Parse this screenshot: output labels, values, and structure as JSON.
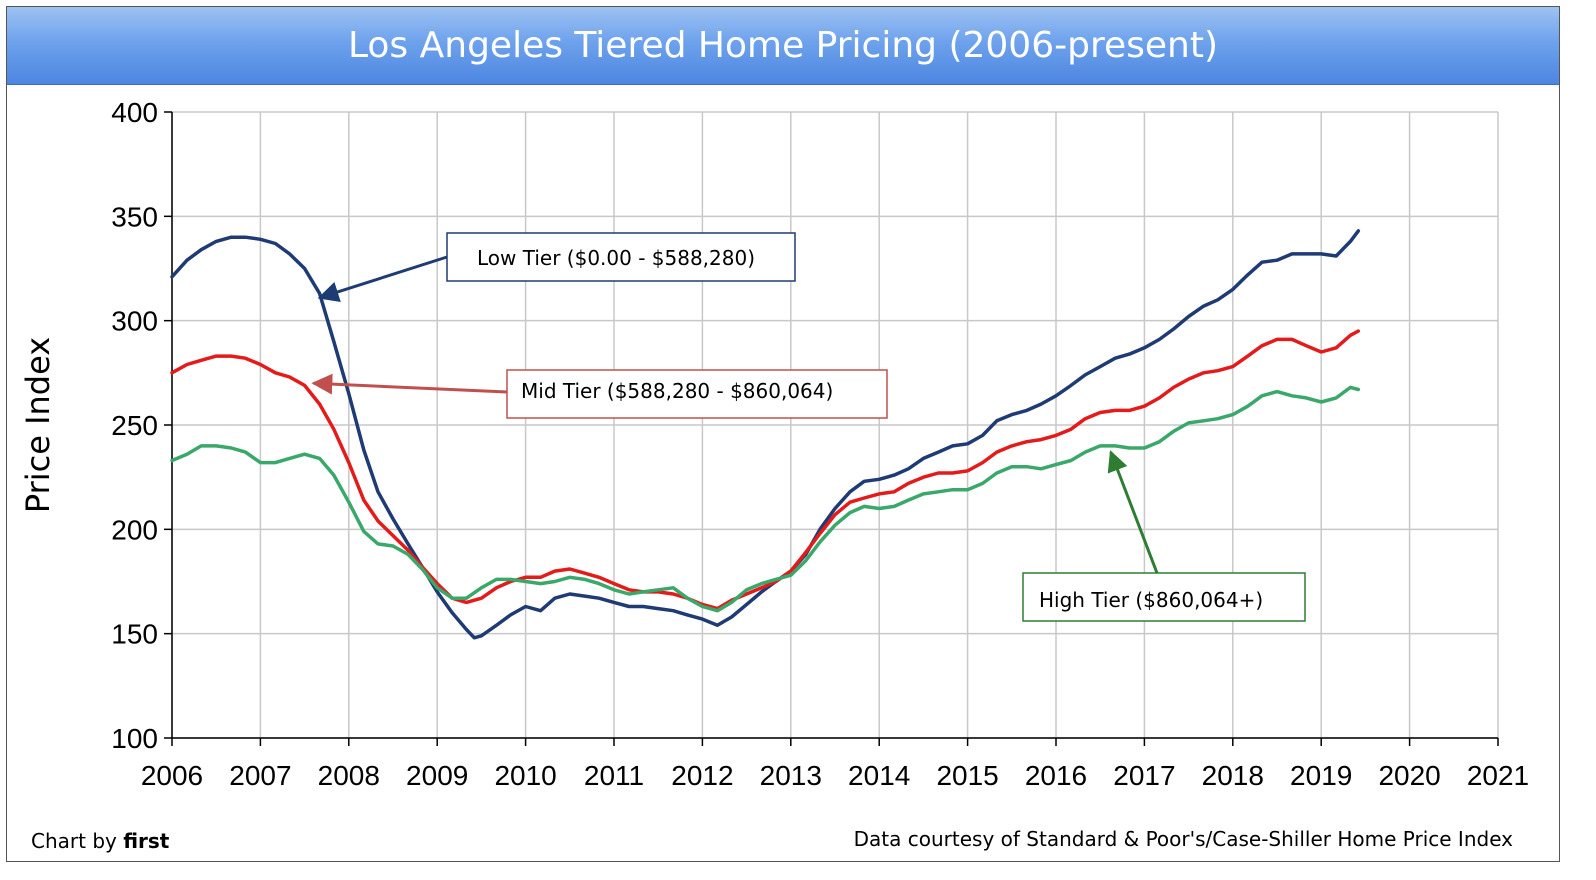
{
  "title": "Los Angeles Tiered Home Pricing (2006-present)",
  "credits": {
    "chart_by_prefix": "Chart by",
    "chart_by_name": "first",
    "source": "Data courtesy of Standard & Poor's/Case-Shiller Home Price Index"
  },
  "chart_data": {
    "type": "line",
    "title": "Los Angeles Tiered Home Pricing (2006-present)",
    "xlabel": "",
    "ylabel": "Price Index",
    "xlim": [
      2006,
      2021
    ],
    "ylim": [
      100,
      400
    ],
    "x_ticks": [
      2006,
      2007,
      2008,
      2009,
      2010,
      2011,
      2012,
      2013,
      2014,
      2015,
      2016,
      2017,
      2018,
      2019,
      2020,
      2021
    ],
    "y_ticks": [
      100,
      150,
      200,
      250,
      300,
      350,
      400
    ],
    "grid": true,
    "series": [
      {
        "name": "Low Tier ($0.00 - $588,280)",
        "color": "#1f3b73",
        "points": [
          [
            2006.0,
            321
          ],
          [
            2006.17,
            329
          ],
          [
            2006.33,
            334
          ],
          [
            2006.5,
            338
          ],
          [
            2006.67,
            340
          ],
          [
            2006.83,
            340
          ],
          [
            2007.0,
            339
          ],
          [
            2007.17,
            337
          ],
          [
            2007.33,
            332
          ],
          [
            2007.5,
            325
          ],
          [
            2007.67,
            313
          ],
          [
            2007.83,
            290
          ],
          [
            2008.0,
            265
          ],
          [
            2008.17,
            238
          ],
          [
            2008.33,
            218
          ],
          [
            2008.5,
            205
          ],
          [
            2008.67,
            193
          ],
          [
            2008.83,
            182
          ],
          [
            2009.0,
            170
          ],
          [
            2009.17,
            160
          ],
          [
            2009.33,
            152
          ],
          [
            2009.42,
            148
          ],
          [
            2009.5,
            149
          ],
          [
            2009.67,
            154
          ],
          [
            2009.83,
            159
          ],
          [
            2010.0,
            163
          ],
          [
            2010.17,
            161
          ],
          [
            2010.33,
            167
          ],
          [
            2010.5,
            169
          ],
          [
            2010.67,
            168
          ],
          [
            2010.83,
            167
          ],
          [
            2011.0,
            165
          ],
          [
            2011.17,
            163
          ],
          [
            2011.33,
            163
          ],
          [
            2011.5,
            162
          ],
          [
            2011.67,
            161
          ],
          [
            2011.83,
            159
          ],
          [
            2012.0,
            157
          ],
          [
            2012.17,
            154
          ],
          [
            2012.33,
            158
          ],
          [
            2012.5,
            164
          ],
          [
            2012.67,
            170
          ],
          [
            2012.83,
            175
          ],
          [
            2013.0,
            180
          ],
          [
            2013.17,
            188
          ],
          [
            2013.33,
            200
          ],
          [
            2013.5,
            210
          ],
          [
            2013.67,
            218
          ],
          [
            2013.83,
            223
          ],
          [
            2014.0,
            224
          ],
          [
            2014.17,
            226
          ],
          [
            2014.33,
            229
          ],
          [
            2014.5,
            234
          ],
          [
            2014.67,
            237
          ],
          [
            2014.83,
            240
          ],
          [
            2015.0,
            241
          ],
          [
            2015.17,
            245
          ],
          [
            2015.33,
            252
          ],
          [
            2015.5,
            255
          ],
          [
            2015.67,
            257
          ],
          [
            2015.83,
            260
          ],
          [
            2016.0,
            264
          ],
          [
            2016.17,
            269
          ],
          [
            2016.33,
            274
          ],
          [
            2016.5,
            278
          ],
          [
            2016.67,
            282
          ],
          [
            2016.83,
            284
          ],
          [
            2017.0,
            287
          ],
          [
            2017.17,
            291
          ],
          [
            2017.33,
            296
          ],
          [
            2017.5,
            302
          ],
          [
            2017.67,
            307
          ],
          [
            2017.83,
            310
          ],
          [
            2018.0,
            315
          ],
          [
            2018.17,
            322
          ],
          [
            2018.33,
            328
          ],
          [
            2018.5,
            329
          ],
          [
            2018.67,
            332
          ],
          [
            2018.83,
            332
          ],
          [
            2019.0,
            332
          ],
          [
            2019.17,
            331
          ],
          [
            2019.33,
            338
          ],
          [
            2019.42,
            343
          ]
        ]
      },
      {
        "name": "Mid Tier ($588,280 - $860,064)",
        "color": "#e31b1b",
        "points": [
          [
            2006.0,
            275
          ],
          [
            2006.17,
            279
          ],
          [
            2006.33,
            281
          ],
          [
            2006.5,
            283
          ],
          [
            2006.67,
            283
          ],
          [
            2006.83,
            282
          ],
          [
            2007.0,
            279
          ],
          [
            2007.17,
            275
          ],
          [
            2007.33,
            273
          ],
          [
            2007.5,
            269
          ],
          [
            2007.67,
            260
          ],
          [
            2007.83,
            248
          ],
          [
            2008.0,
            232
          ],
          [
            2008.17,
            214
          ],
          [
            2008.33,
            204
          ],
          [
            2008.5,
            197
          ],
          [
            2008.67,
            190
          ],
          [
            2008.83,
            182
          ],
          [
            2009.0,
            174
          ],
          [
            2009.17,
            167
          ],
          [
            2009.33,
            165
          ],
          [
            2009.5,
            167
          ],
          [
            2009.67,
            172
          ],
          [
            2009.83,
            175
          ],
          [
            2010.0,
            177
          ],
          [
            2010.17,
            177
          ],
          [
            2010.33,
            180
          ],
          [
            2010.5,
            181
          ],
          [
            2010.67,
            179
          ],
          [
            2010.83,
            177
          ],
          [
            2011.0,
            174
          ],
          [
            2011.17,
            171
          ],
          [
            2011.33,
            170
          ],
          [
            2011.5,
            170
          ],
          [
            2011.67,
            169
          ],
          [
            2011.83,
            167
          ],
          [
            2012.0,
            164
          ],
          [
            2012.17,
            162
          ],
          [
            2012.33,
            166
          ],
          [
            2012.5,
            169
          ],
          [
            2012.67,
            172
          ],
          [
            2012.83,
            175
          ],
          [
            2013.0,
            180
          ],
          [
            2013.17,
            189
          ],
          [
            2013.33,
            198
          ],
          [
            2013.5,
            207
          ],
          [
            2013.67,
            213
          ],
          [
            2013.83,
            215
          ],
          [
            2014.0,
            217
          ],
          [
            2014.17,
            218
          ],
          [
            2014.33,
            222
          ],
          [
            2014.5,
            225
          ],
          [
            2014.67,
            227
          ],
          [
            2014.83,
            227
          ],
          [
            2015.0,
            228
          ],
          [
            2015.17,
            232
          ],
          [
            2015.33,
            237
          ],
          [
            2015.5,
            240
          ],
          [
            2015.67,
            242
          ],
          [
            2015.83,
            243
          ],
          [
            2016.0,
            245
          ],
          [
            2016.17,
            248
          ],
          [
            2016.33,
            253
          ],
          [
            2016.5,
            256
          ],
          [
            2016.67,
            257
          ],
          [
            2016.83,
            257
          ],
          [
            2017.0,
            259
          ],
          [
            2017.17,
            263
          ],
          [
            2017.33,
            268
          ],
          [
            2017.5,
            272
          ],
          [
            2017.67,
            275
          ],
          [
            2017.83,
            276
          ],
          [
            2018.0,
            278
          ],
          [
            2018.17,
            283
          ],
          [
            2018.33,
            288
          ],
          [
            2018.5,
            291
          ],
          [
            2018.67,
            291
          ],
          [
            2018.83,
            288
          ],
          [
            2019.0,
            285
          ],
          [
            2019.17,
            287
          ],
          [
            2019.33,
            293
          ],
          [
            2019.42,
            295
          ]
        ]
      },
      {
        "name": "High Tier ($860,064+)",
        "color": "#3aa86a",
        "points": [
          [
            2006.0,
            233
          ],
          [
            2006.17,
            236
          ],
          [
            2006.33,
            240
          ],
          [
            2006.5,
            240
          ],
          [
            2006.67,
            239
          ],
          [
            2006.83,
            237
          ],
          [
            2007.0,
            232
          ],
          [
            2007.17,
            232
          ],
          [
            2007.33,
            234
          ],
          [
            2007.5,
            236
          ],
          [
            2007.67,
            234
          ],
          [
            2007.83,
            226
          ],
          [
            2008.0,
            213
          ],
          [
            2008.17,
            199
          ],
          [
            2008.33,
            193
          ],
          [
            2008.5,
            192
          ],
          [
            2008.67,
            188
          ],
          [
            2008.83,
            181
          ],
          [
            2009.0,
            172
          ],
          [
            2009.17,
            167
          ],
          [
            2009.33,
            167
          ],
          [
            2009.5,
            172
          ],
          [
            2009.67,
            176
          ],
          [
            2009.83,
            176
          ],
          [
            2010.0,
            175
          ],
          [
            2010.17,
            174
          ],
          [
            2010.33,
            175
          ],
          [
            2010.5,
            177
          ],
          [
            2010.67,
            176
          ],
          [
            2010.83,
            174
          ],
          [
            2011.0,
            171
          ],
          [
            2011.17,
            169
          ],
          [
            2011.33,
            170
          ],
          [
            2011.5,
            171
          ],
          [
            2011.67,
            172
          ],
          [
            2011.83,
            167
          ],
          [
            2012.0,
            163
          ],
          [
            2012.17,
            161
          ],
          [
            2012.33,
            165
          ],
          [
            2012.5,
            171
          ],
          [
            2012.67,
            174
          ],
          [
            2012.83,
            176
          ],
          [
            2013.0,
            178
          ],
          [
            2013.17,
            185
          ],
          [
            2013.33,
            194
          ],
          [
            2013.5,
            202
          ],
          [
            2013.67,
            208
          ],
          [
            2013.83,
            211
          ],
          [
            2014.0,
            210
          ],
          [
            2014.17,
            211
          ],
          [
            2014.33,
            214
          ],
          [
            2014.5,
            217
          ],
          [
            2014.67,
            218
          ],
          [
            2014.83,
            219
          ],
          [
            2015.0,
            219
          ],
          [
            2015.17,
            222
          ],
          [
            2015.33,
            227
          ],
          [
            2015.5,
            230
          ],
          [
            2015.67,
            230
          ],
          [
            2015.83,
            229
          ],
          [
            2016.0,
            231
          ],
          [
            2016.17,
            233
          ],
          [
            2016.33,
            237
          ],
          [
            2016.5,
            240
          ],
          [
            2016.67,
            240
          ],
          [
            2016.83,
            239
          ],
          [
            2017.0,
            239
          ],
          [
            2017.17,
            242
          ],
          [
            2017.33,
            247
          ],
          [
            2017.5,
            251
          ],
          [
            2017.67,
            252
          ],
          [
            2017.83,
            253
          ],
          [
            2018.0,
            255
          ],
          [
            2018.17,
            259
          ],
          [
            2018.33,
            264
          ],
          [
            2018.5,
            266
          ],
          [
            2018.67,
            264
          ],
          [
            2018.83,
            263
          ],
          [
            2019.0,
            261
          ],
          [
            2019.17,
            263
          ],
          [
            2019.33,
            268
          ],
          [
            2019.42,
            267
          ]
        ]
      }
    ],
    "annotations": [
      {
        "text": "Low Tier ($0.00 - $588,280)",
        "color": "#1f3b73",
        "target": [
          2007.67,
          311
        ]
      },
      {
        "text": "Mid Tier ($588,280 - $860,064)",
        "color": "#c0504d",
        "target": [
          2007.6,
          270
        ]
      },
      {
        "text": "High Tier ($860,064+)",
        "color": "#2e7d32",
        "target": [
          2016.62,
          237
        ]
      }
    ]
  }
}
